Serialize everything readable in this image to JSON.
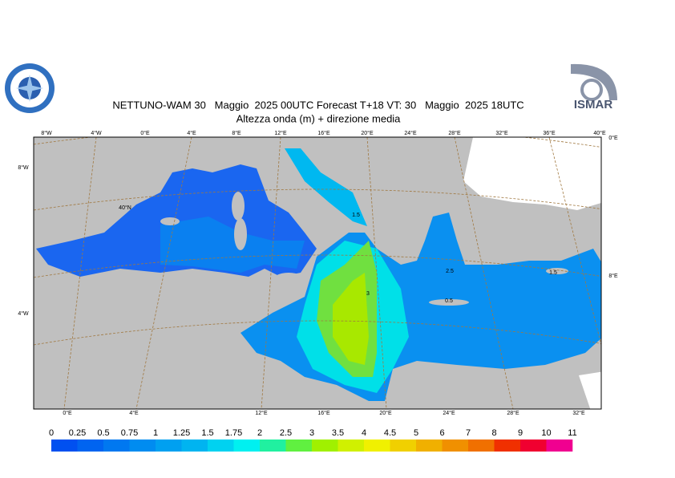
{
  "header": {
    "title": "NETTUNO-WAM 30   Maggio  2025 00UTC Forecast T+18 VT: 30   Maggio  2025 18UTC",
    "subtitle": "Altezza onda (m) + direzione media",
    "logo_right": "ISMAR"
  },
  "map": {
    "top_labels": [
      "8°W",
      "4°W",
      "0°E",
      "4°E",
      "8°E",
      "12°E",
      "16°E",
      "20°E",
      "24°E",
      "28°E",
      "32°E",
      "36°E",
      "40°E"
    ],
    "bottom_labels": [
      "0°E",
      "4°E",
      "12°E",
      "16°E",
      "20°E",
      "24°E",
      "28°E",
      "32°E"
    ],
    "left_labels": [
      "8°W",
      "4°W"
    ],
    "right_labels": [
      "0°E",
      "8°E"
    ],
    "inner_labels": [
      "40°N"
    ],
    "contour_labels": [
      "1.5",
      "2.5",
      "0.5",
      "3",
      "1.5"
    ]
  },
  "colorbar": {
    "ticks": [
      0,
      0.25,
      0.5,
      0.75,
      1,
      1.25,
      1.5,
      1.75,
      2,
      2.5,
      3,
      3.5,
      4,
      4.5,
      5,
      6,
      7,
      8,
      9,
      10,
      11
    ],
    "colors": [
      "#0050f0",
      "#0064f0",
      "#0078f0",
      "#008cf0",
      "#00a0f0",
      "#00b4f0",
      "#00d2f0",
      "#00f0f0",
      "#20f0a0",
      "#60f040",
      "#a0f000",
      "#d0f000",
      "#f0f000",
      "#f0d000",
      "#f0b000",
      "#f09000",
      "#f07000",
      "#f03000",
      "#f00030",
      "#f00090"
    ]
  }
}
